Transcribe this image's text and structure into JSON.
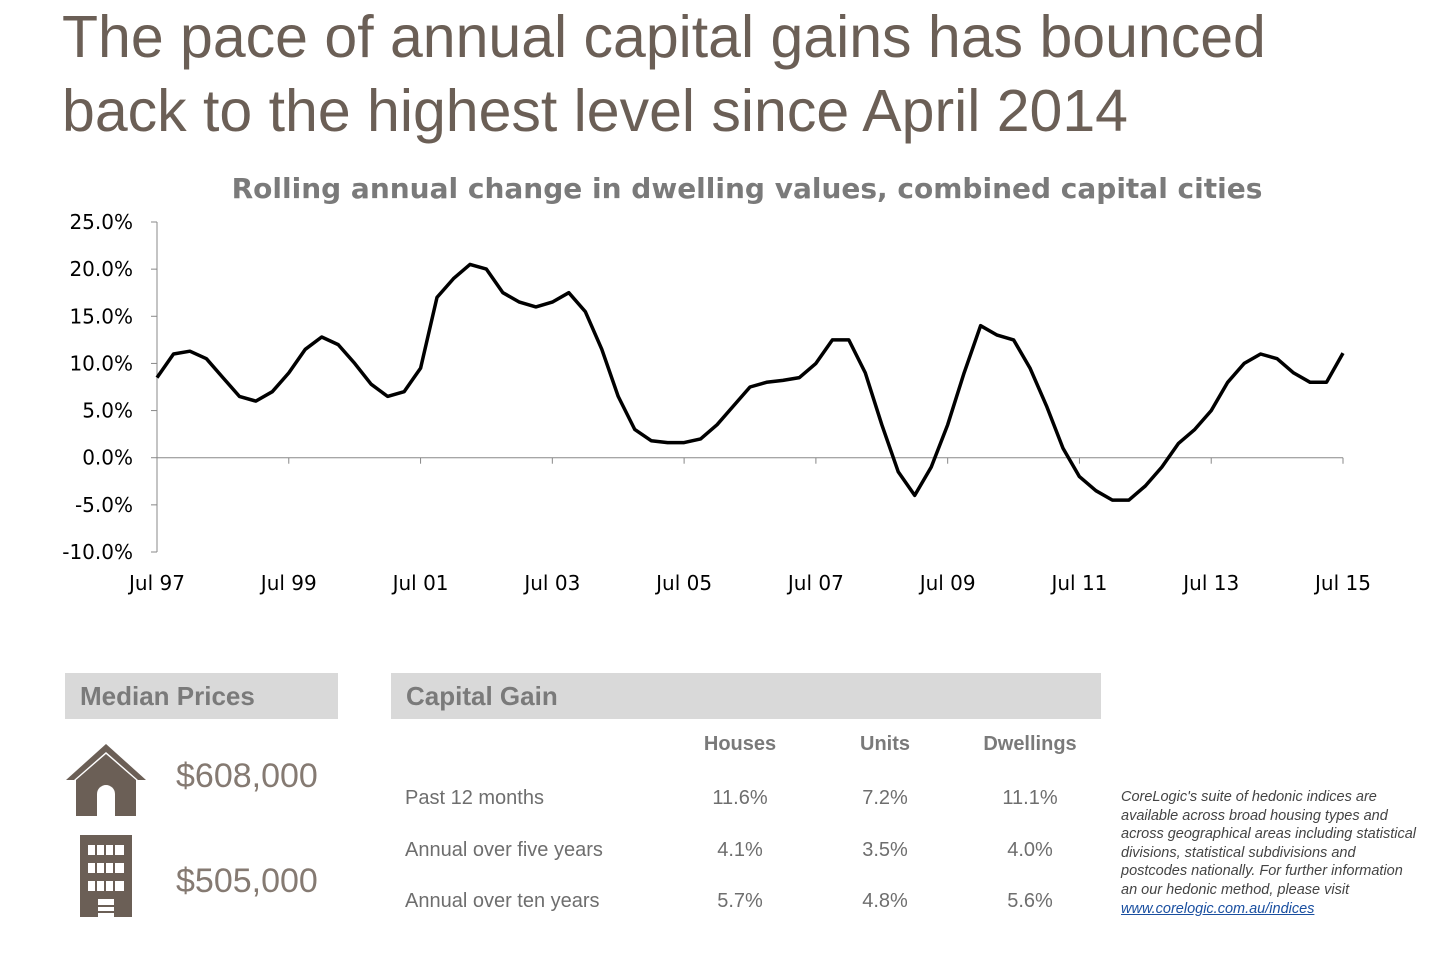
{
  "header": {
    "title": "The pace of annual capital gains has bounced back to the highest level since April 2014"
  },
  "chart_data": {
    "type": "line",
    "title": "Rolling annual change in dwelling values, combined capital cities",
    "categories": [
      "Jul 97",
      null,
      null,
      null,
      null,
      null,
      null,
      null,
      "Jul 99",
      null,
      null,
      null,
      null,
      null,
      null,
      null,
      "Jul 01",
      null,
      null,
      null,
      null,
      null,
      null,
      null,
      "Jul 03",
      null,
      null,
      null,
      null,
      null,
      null,
      null,
      "Jul 05",
      null,
      null,
      null,
      null,
      null,
      null,
      null,
      "Jul 07",
      null,
      null,
      null,
      null,
      null,
      null,
      null,
      "Jul 09",
      null,
      null,
      null,
      null,
      null,
      null,
      null,
      "Jul 11",
      null,
      null,
      null,
      null,
      null,
      null,
      null,
      "Jul 13",
      null,
      null,
      null,
      null,
      null,
      null,
      null,
      "Jul 15"
    ],
    "values": [
      8.5,
      11.0,
      11.3,
      10.5,
      8.5,
      6.5,
      6.0,
      7.0,
      9.0,
      11.5,
      12.8,
      12.0,
      10.0,
      7.8,
      6.5,
      7.0,
      9.5,
      17.0,
      19.0,
      20.5,
      20.0,
      17.5,
      16.5,
      16.0,
      16.5,
      17.5,
      15.5,
      11.5,
      6.5,
      3.0,
      1.8,
      1.6,
      1.6,
      2.0,
      3.5,
      5.5,
      7.5,
      8.0,
      8.2,
      8.5,
      10.0,
      12.5,
      12.5,
      9.0,
      3.5,
      -1.5,
      -4.0,
      -1.0,
      3.5,
      9.0,
      14.0,
      13.0,
      12.5,
      9.5,
      5.5,
      1.0,
      -2.0,
      -3.5,
      -4.5,
      -4.5,
      -3.0,
      -1.0,
      1.5,
      3.0,
      5.0,
      8.0,
      10.0,
      11.0,
      10.5,
      9.0,
      8.0,
      8.0,
      11.1
    ],
    "color": "#000000",
    "ylim": [
      -10,
      25
    ],
    "yticks": [
      {
        "value": -10,
        "label": "-10.0%"
      },
      {
        "value": -5,
        "label": "-5.0%"
      },
      {
        "value": 0,
        "label": "0.0%"
      },
      {
        "value": 5,
        "label": "5.0%"
      },
      {
        "value": 10,
        "label": "10.0%"
      },
      {
        "value": 15,
        "label": "15.0%"
      },
      {
        "value": 20,
        "label": "20.0%"
      },
      {
        "value": 25,
        "label": "25.0%"
      }
    ],
    "grid": false
  },
  "median_prices": {
    "title": "Median Prices",
    "houses": "$608,000",
    "units": "$505,000"
  },
  "capital_gain": {
    "title": "Capital Gain",
    "columns": [
      "Houses",
      "Units",
      "Dwellings"
    ],
    "rows": [
      {
        "label": "Past 12 months",
        "values": [
          "11.6%",
          "7.2%",
          "11.1%"
        ]
      },
      {
        "label": "Annual over five years",
        "values": [
          "4.1%",
          "3.5%",
          "4.0%"
        ]
      },
      {
        "label": "Annual over ten years",
        "values": [
          "5.7%",
          "4.8%",
          "5.6%"
        ]
      }
    ]
  },
  "note": {
    "text": "CoreLogic's suite of hedonic indices are available across broad housing types and across geographical areas including statistical divisions, statistical subdivisions and postcodes nationally.  For further information an our hedonic method, please visit ",
    "link": "www.corelogic.com.au/indices"
  }
}
